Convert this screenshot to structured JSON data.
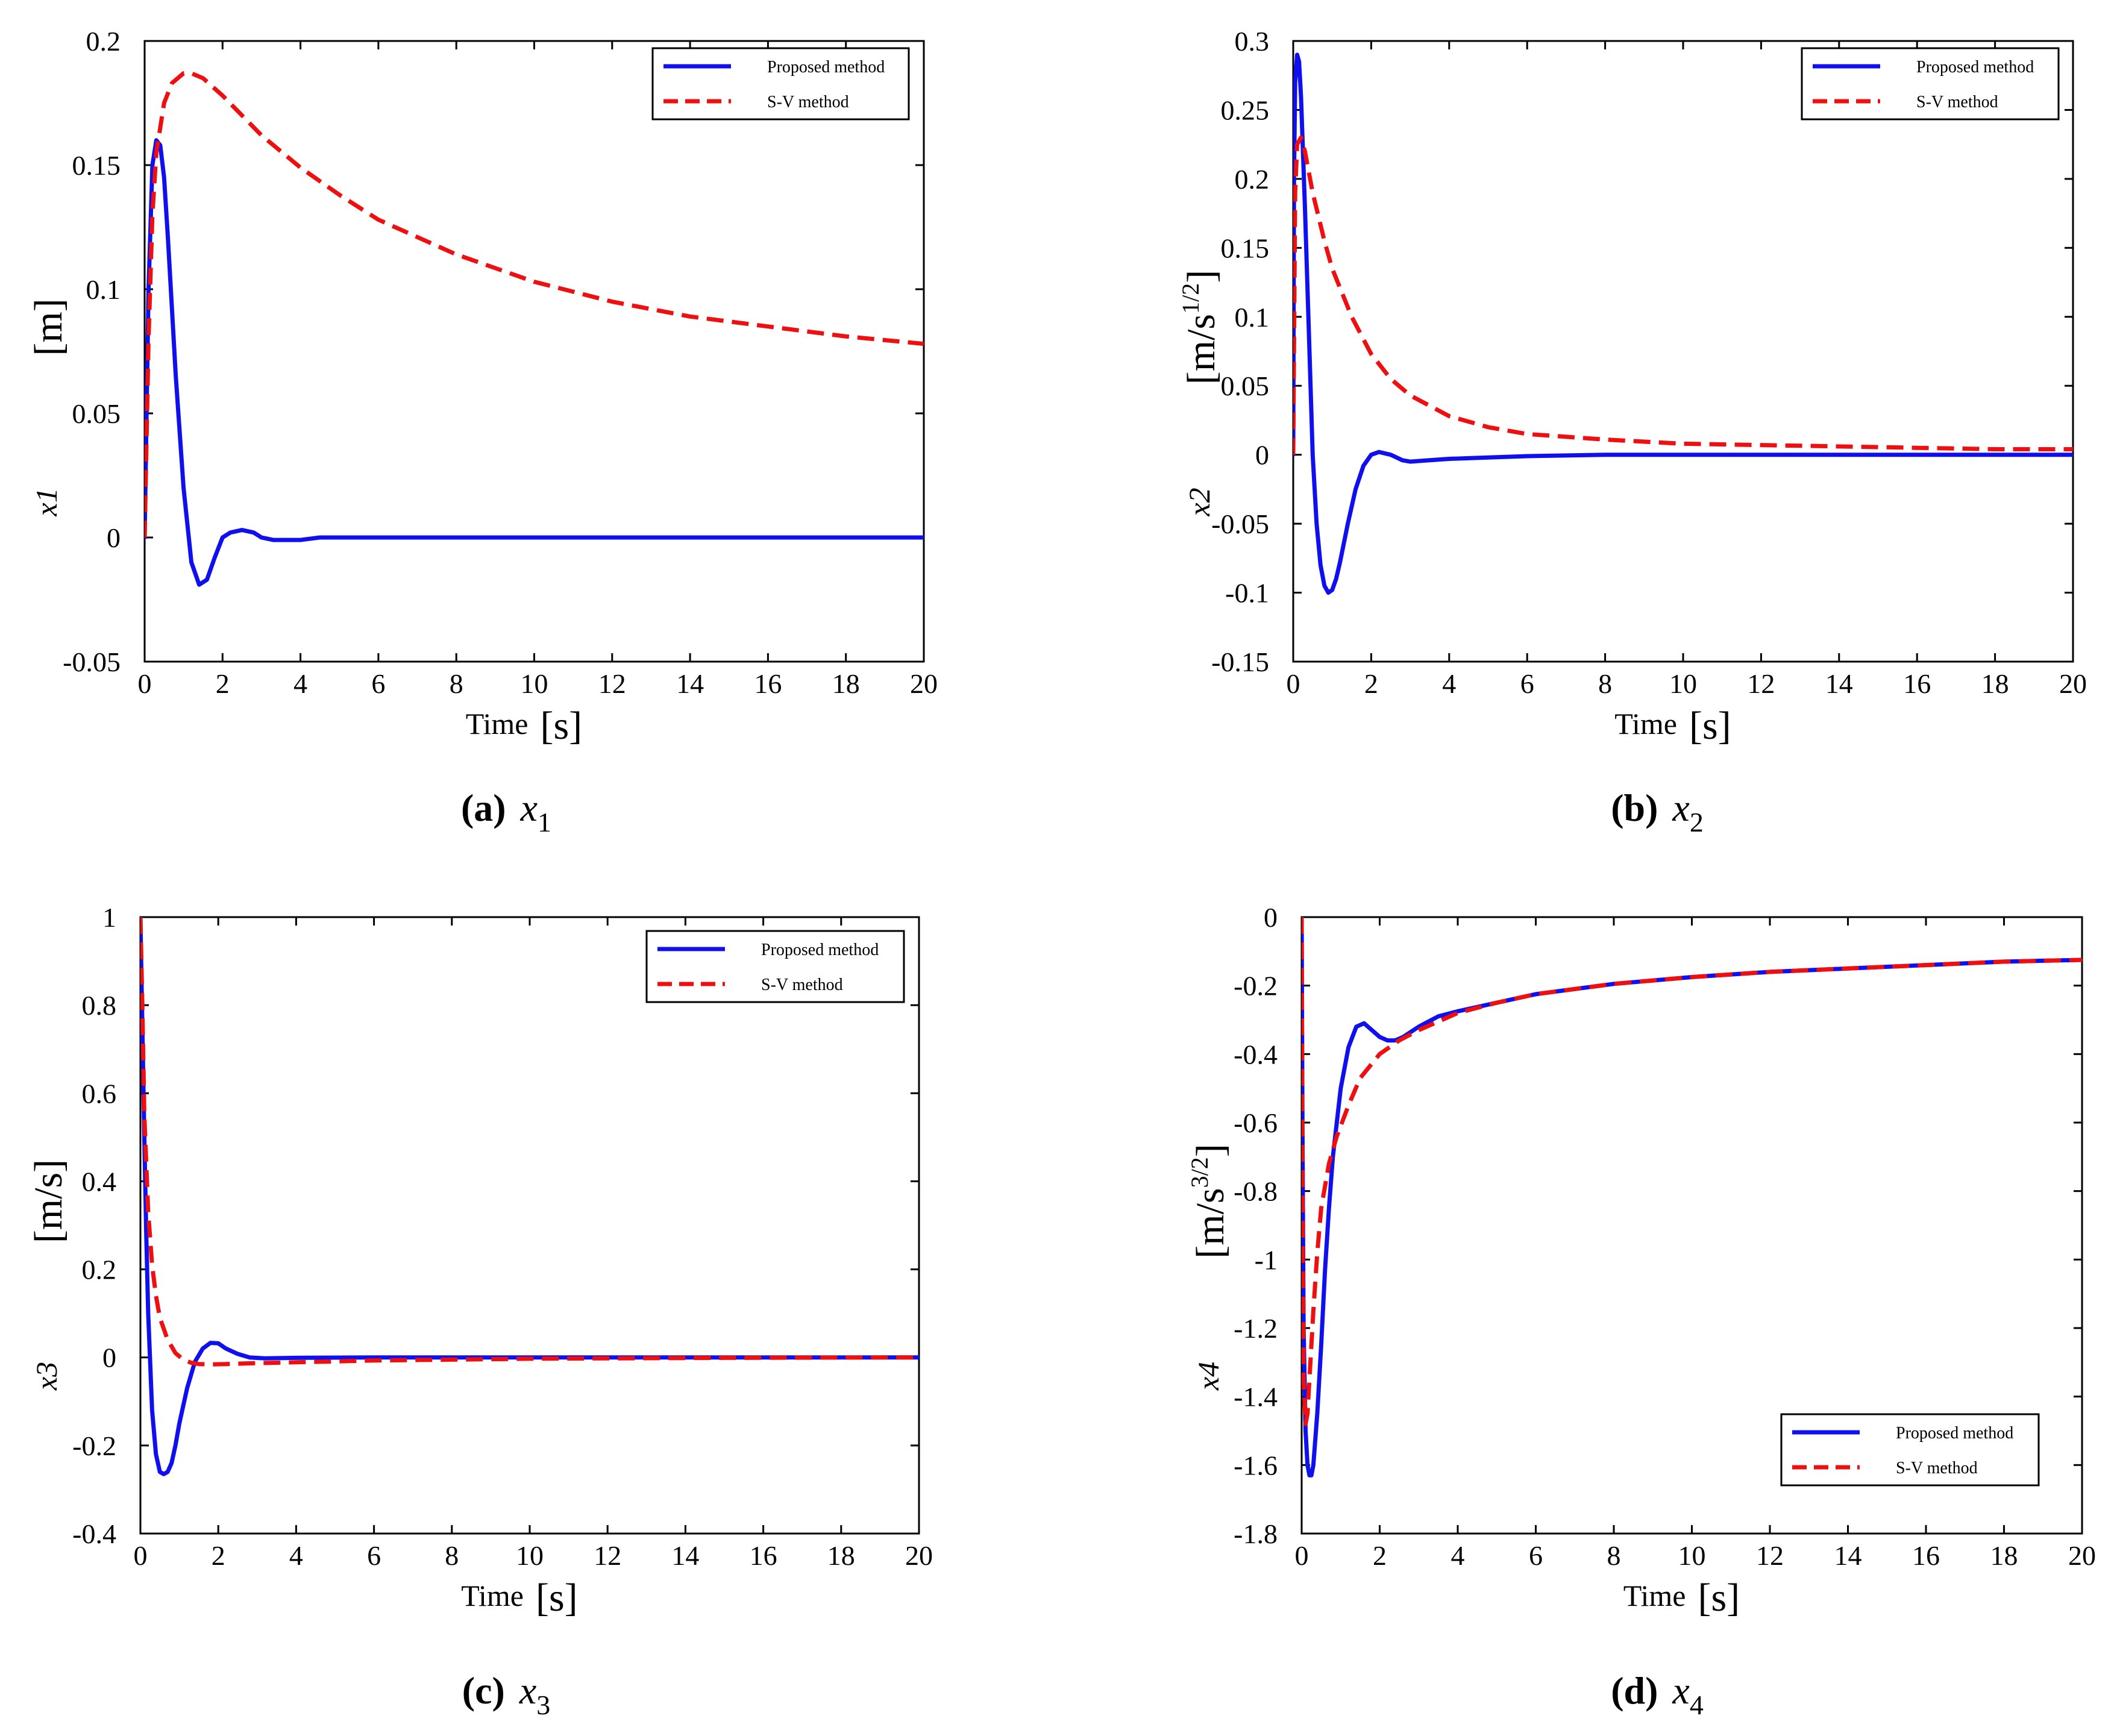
{
  "colors": {
    "proposed": "#1010ee",
    "sv": "#ee1010"
  },
  "legend": {
    "proposed": "Proposed method",
    "sv": "S-V method"
  },
  "chart_data": [
    {
      "type": "line",
      "subplot": "a",
      "caption": {
        "letter": "(a)",
        "var": "x",
        "sub": "1"
      },
      "ylabel": "x1",
      "yunit": "[m]",
      "xlabel": "Time",
      "xunit": "[s]",
      "xlim": [
        0,
        20
      ],
      "ylim": [
        -0.05,
        0.2
      ],
      "xticks": [
        0,
        2,
        4,
        6,
        8,
        10,
        12,
        14,
        16,
        18,
        20
      ],
      "xtick_labels": [
        "0",
        "2",
        "4",
        "6",
        "8",
        "10",
        "12",
        "14",
        "16",
        "18",
        "20"
      ],
      "yticks": [
        -0.05,
        0,
        0.05,
        0.1,
        0.15,
        0.2
      ],
      "ytick_labels": [
        "-0.05",
        "0",
        "0.05",
        "0.1",
        "0.15",
        "0.2"
      ],
      "legend_position": "top-right",
      "series": [
        {
          "name": "Proposed method",
          "style": "solid",
          "x": [
            0,
            0.05,
            0.1,
            0.2,
            0.3,
            0.4,
            0.5,
            0.6,
            0.8,
            1.0,
            1.2,
            1.4,
            1.6,
            1.8,
            2.0,
            2.2,
            2.5,
            2.8,
            3.0,
            3.3,
            3.6,
            4.0,
            4.5,
            6,
            8,
            10,
            15,
            20
          ],
          "y": [
            0,
            0.05,
            0.1,
            0.15,
            0.16,
            0.158,
            0.145,
            0.12,
            0.065,
            0.02,
            -0.01,
            -0.019,
            -0.017,
            -0.008,
            0.0,
            0.002,
            0.003,
            0.002,
            0.0,
            -0.001,
            -0.001,
            -0.001,
            0.0,
            0,
            0,
            0,
            0,
            0
          ]
        },
        {
          "name": "S-V method",
          "style": "dashed",
          "x": [
            0,
            0.1,
            0.2,
            0.3,
            0.5,
            0.7,
            1.0,
            1.2,
            1.5,
            2.0,
            2.5,
            3,
            4,
            5,
            6,
            8,
            10,
            12,
            14,
            16,
            18,
            20
          ],
          "y": [
            0,
            0.08,
            0.13,
            0.155,
            0.175,
            0.183,
            0.187,
            0.187,
            0.185,
            0.178,
            0.17,
            0.162,
            0.149,
            0.138,
            0.128,
            0.114,
            0.103,
            0.095,
            0.089,
            0.085,
            0.081,
            0.078
          ]
        }
      ]
    },
    {
      "type": "line",
      "subplot": "b",
      "caption": {
        "letter": "(b)",
        "var": "x",
        "sub": "2"
      },
      "ylabel": "x2",
      "yunit_base": "[m/s",
      "yunit_sup": "1/2",
      "yunit_close": "]",
      "xlabel": "Time",
      "xunit": "[s]",
      "xlim": [
        0,
        20
      ],
      "ylim": [
        -0.15,
        0.3
      ],
      "xticks": [
        0,
        2,
        4,
        6,
        8,
        10,
        12,
        14,
        16,
        18,
        20
      ],
      "xtick_labels": [
        "0",
        "2",
        "4",
        "6",
        "8",
        "10",
        "12",
        "14",
        "16",
        "18",
        "20"
      ],
      "yticks": [
        -0.15,
        -0.1,
        -0.05,
        0,
        0.05,
        0.1,
        0.15,
        0.2,
        0.25,
        0.3
      ],
      "ytick_labels": [
        "-0.15",
        "-0.1",
        "-0.05",
        "0",
        "0.05",
        "0.1",
        "0.15",
        "0.2",
        "0.25",
        "0.3"
      ],
      "legend_position": "top-right",
      "series": [
        {
          "name": "Proposed method",
          "style": "solid",
          "x": [
            0,
            0.02,
            0.05,
            0.1,
            0.15,
            0.2,
            0.3,
            0.4,
            0.5,
            0.6,
            0.7,
            0.8,
            0.9,
            1.0,
            1.1,
            1.2,
            1.4,
            1.6,
            1.8,
            2.0,
            2.2,
            2.5,
            2.8,
            3.0,
            3.5,
            4,
            5,
            6,
            8,
            10,
            15,
            20
          ],
          "y": [
            0,
            0.2,
            0.27,
            0.29,
            0.285,
            0.26,
            0.18,
            0.09,
            0.0,
            -0.05,
            -0.08,
            -0.095,
            -0.1,
            -0.098,
            -0.09,
            -0.078,
            -0.05,
            -0.025,
            -0.008,
            0.0,
            0.002,
            0.0,
            -0.004,
            -0.005,
            -0.004,
            -0.003,
            -0.002,
            -0.001,
            0,
            0,
            0,
            0
          ]
        },
        {
          "name": "S-V method",
          "style": "dashed",
          "x": [
            0,
            0.05,
            0.1,
            0.2,
            0.3,
            0.5,
            0.8,
            1,
            1.5,
            2,
            2.5,
            3,
            4,
            5,
            6,
            8,
            10,
            12,
            14,
            16,
            18,
            20
          ],
          "y": [
            0,
            0.19,
            0.225,
            0.23,
            0.22,
            0.19,
            0.155,
            0.135,
            0.1,
            0.073,
            0.055,
            0.043,
            0.028,
            0.02,
            0.015,
            0.011,
            0.008,
            0.007,
            0.006,
            0.005,
            0.004,
            0.004
          ]
        }
      ]
    },
    {
      "type": "line",
      "subplot": "c",
      "caption": {
        "letter": "(c)",
        "var": "x",
        "sub": "3"
      },
      "ylabel": "x3",
      "yunit": "[m/s]",
      "xlabel": "Time",
      "xunit": "[s]",
      "xlim": [
        0,
        20
      ],
      "ylim": [
        -0.4,
        1
      ],
      "xticks": [
        0,
        2,
        4,
        6,
        8,
        10,
        12,
        14,
        16,
        18,
        20
      ],
      "xtick_labels": [
        "0",
        "2",
        "4",
        "6",
        "8",
        "10",
        "12",
        "14",
        "16",
        "18",
        "20"
      ],
      "yticks": [
        -0.4,
        -0.2,
        0,
        0.2,
        0.4,
        0.6,
        0.8,
        1
      ],
      "ytick_labels": [
        "-0.4",
        "-0.2",
        "0",
        "0.2",
        "0.4",
        "0.6",
        "0.8",
        "1"
      ],
      "legend_position": "top-right",
      "series": [
        {
          "name": "Proposed method",
          "style": "solid",
          "x": [
            0,
            0.03,
            0.06,
            0.1,
            0.15,
            0.2,
            0.3,
            0.4,
            0.5,
            0.6,
            0.7,
            0.8,
            0.9,
            1.0,
            1.2,
            1.4,
            1.6,
            1.8,
            2.0,
            2.2,
            2.5,
            2.8,
            3.2,
            4,
            6,
            10,
            15,
            20
          ],
          "y": [
            1.0,
            0.85,
            0.7,
            0.5,
            0.28,
            0.1,
            -0.12,
            -0.22,
            -0.26,
            -0.265,
            -0.26,
            -0.24,
            -0.2,
            -0.15,
            -0.07,
            -0.01,
            0.02,
            0.033,
            0.032,
            0.02,
            0.008,
            0.0,
            -0.002,
            -0.001,
            0,
            0,
            0,
            0
          ]
        },
        {
          "name": "S-V method",
          "style": "dashed",
          "x": [
            0,
            0.05,
            0.1,
            0.2,
            0.3,
            0.4,
            0.5,
            0.7,
            0.9,
            1.1,
            1.3,
            1.5,
            1.8,
            2.2,
            3,
            4,
            5,
            6,
            8,
            10,
            15,
            20
          ],
          "y": [
            1.0,
            0.8,
            0.55,
            0.33,
            0.21,
            0.14,
            0.09,
            0.04,
            0.01,
            -0.005,
            -0.012,
            -0.015,
            -0.016,
            -0.015,
            -0.013,
            -0.011,
            -0.009,
            -0.007,
            -0.005,
            -0.003,
            -0.001,
            0
          ]
        }
      ]
    },
    {
      "type": "line",
      "subplot": "d",
      "caption": {
        "letter": "(d)",
        "var": "x",
        "sub": "4"
      },
      "ylabel": "x4",
      "yunit_base": "[m/s",
      "yunit_sup": "3/2",
      "yunit_close": "]",
      "xlabel": "Time",
      "xunit": "[s]",
      "xlim": [
        0,
        20
      ],
      "ylim": [
        -1.8,
        0
      ],
      "xticks": [
        0,
        2,
        4,
        6,
        8,
        10,
        12,
        14,
        16,
        18,
        20
      ],
      "xtick_labels": [
        "0",
        "2",
        "4",
        "6",
        "8",
        "10",
        "12",
        "14",
        "16",
        "18",
        "20"
      ],
      "yticks": [
        -1.8,
        -1.6,
        -1.4,
        -1.2,
        -1,
        -0.8,
        -0.6,
        -0.4,
        -0.2,
        0
      ],
      "ytick_labels": [
        "-1.8",
        "-1.6",
        "-1.4",
        "-1.2",
        "-1",
        "-0.8",
        "-0.6",
        "-0.4",
        "-0.2",
        "0"
      ],
      "legend_position": "bottom-right",
      "series": [
        {
          "name": "Proposed method",
          "style": "solid",
          "x": [
            0,
            0.02,
            0.05,
            0.1,
            0.15,
            0.2,
            0.25,
            0.3,
            0.4,
            0.5,
            0.6,
            0.7,
            0.8,
            1.0,
            1.2,
            1.4,
            1.6,
            1.8,
            2.0,
            2.2,
            2.4,
            2.6,
            3.0,
            3.5,
            4,
            5,
            6,
            8,
            10,
            12,
            14,
            16,
            18,
            20
          ],
          "y": [
            0,
            -0.6,
            -1.2,
            -1.5,
            -1.6,
            -1.63,
            -1.63,
            -1.6,
            -1.45,
            -1.25,
            -1.03,
            -0.85,
            -0.7,
            -0.5,
            -0.38,
            -0.32,
            -0.31,
            -0.33,
            -0.35,
            -0.36,
            -0.36,
            -0.35,
            -0.32,
            -0.29,
            -0.275,
            -0.25,
            -0.225,
            -0.195,
            -0.175,
            -0.16,
            -0.15,
            -0.14,
            -0.13,
            -0.125
          ]
        },
        {
          "name": "S-V method",
          "style": "dashed",
          "x": [
            0,
            0.02,
            0.05,
            0.1,
            0.15,
            0.2,
            0.3,
            0.4,
            0.5,
            0.7,
            0.9,
            1.2,
            1.5,
            2.0,
            2.5,
            3,
            4,
            5,
            6,
            8,
            10,
            12,
            14,
            16,
            18,
            20
          ],
          "y": [
            0,
            -0.8,
            -1.35,
            -1.48,
            -1.45,
            -1.35,
            -1.15,
            -0.98,
            -0.85,
            -0.72,
            -0.64,
            -0.55,
            -0.47,
            -0.4,
            -0.36,
            -0.33,
            -0.28,
            -0.25,
            -0.225,
            -0.195,
            -0.175,
            -0.16,
            -0.15,
            -0.14,
            -0.13,
            -0.125
          ]
        }
      ]
    }
  ]
}
